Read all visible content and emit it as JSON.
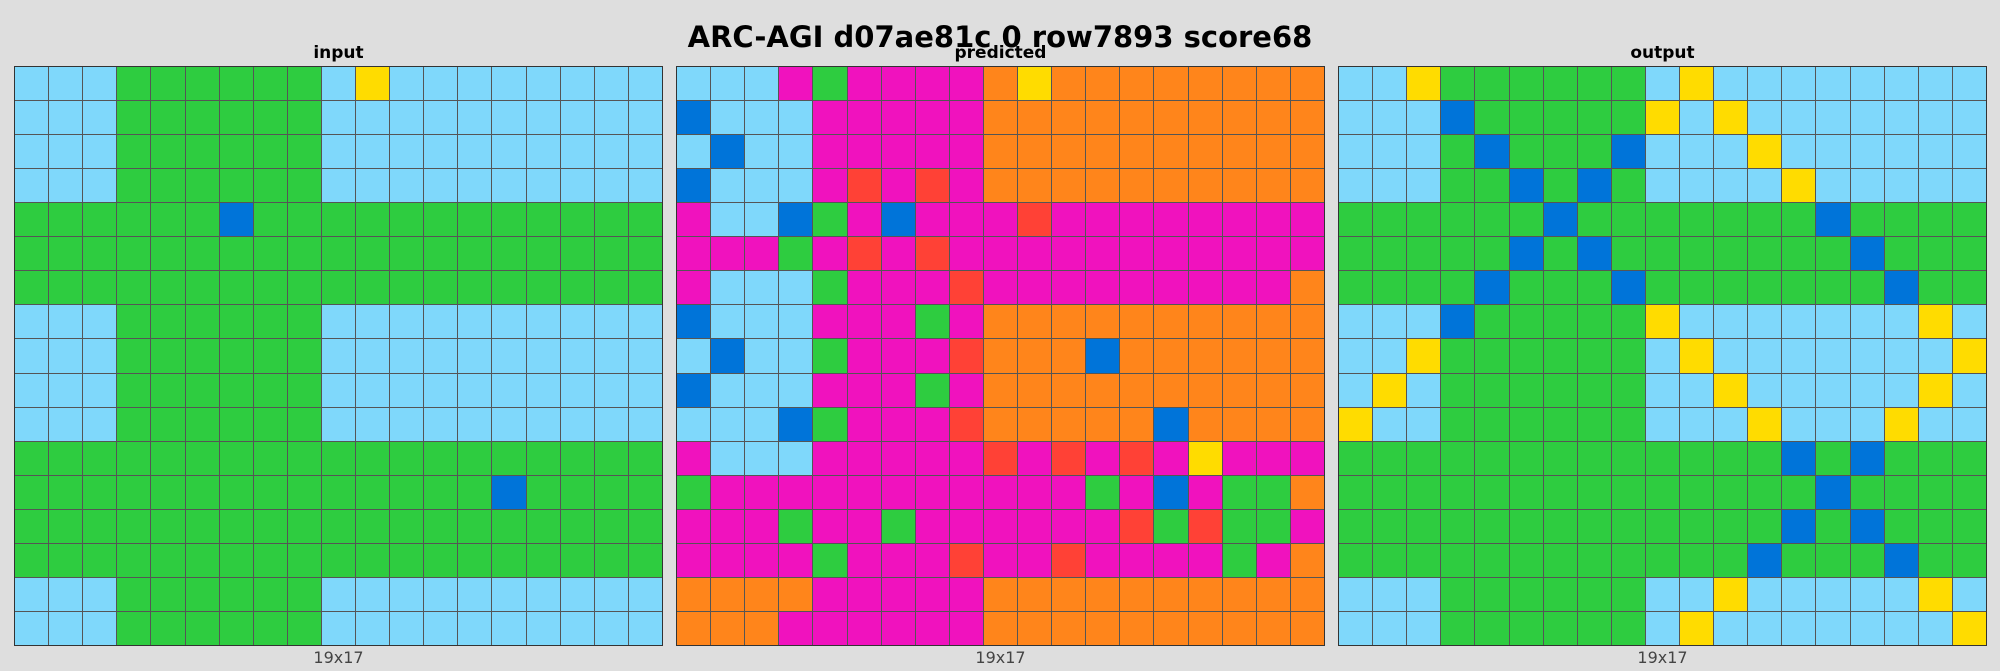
{
  "title": "ARC-AGI d07ae81c 0 row7893 score68",
  "palette": {
    "L": "#7fd8fb",
    "G": "#2ecc40",
    "B": "#0074d9",
    "Y": "#ffdc00",
    "M": "#f012be",
    "O": "#ff851b",
    "R": "#ff4136"
  },
  "panels": [
    {
      "label": "input",
      "dims": "19x17",
      "rows": [
        "LLLGGGGGGLYLLLLLLLL",
        "LLLGGGGGGLLLLLLLLLL",
        "LLLGGGGGGLLLLLLLLLL",
        "LLLGGGGGGLLLLLLLLLL",
        "GGGGGGBGGGGGGGGGGGG",
        "GGGGGGGGGGGGGGGGGGG",
        "GGGGGGGGGGGGGGGGGGG",
        "LLLGGGGGGLLLLLLLLLL",
        "LLLGGGGGGLLLLLLLLLL",
        "LLLGGGGGGLLLLLLLLLL",
        "LLLGGGGGGLLLLLLLLLL",
        "GGGGGGGGGGGGGGGGGGG",
        "GGGGGGGGGGGGGGBGGGG",
        "GGGGGGGGGGGGGGGGGGG",
        "GGGGGGGGGGGGGGGGGGG",
        "LLLGGGGGGLLLLLLLLLL",
        "LLLGGGGGGLLLLLLLLLL"
      ]
    },
    {
      "label": "predicted",
      "dims": "19x17",
      "rows": [
        "LLLMGMMMMOYOOOOOOOO",
        "BLLLMMMMMOOOOOOOOOO",
        "LBLLMMMMMOOOOOOOOOO",
        "BLLLMRMRMOOOOOOOOOO",
        "MLLBGMBMMMRMMMMMMMM",
        "MMMGMRMRMMMMMMMMMMM",
        "MLLLGMMMRMMMMMMMMMO",
        "BLLLMMMGMOOOOOOOOOO",
        "LBLLGMMMROOOBOOOOOO",
        "BLLLMMMGMOOOOOOOOOO",
        "LLLBGMMMROOOOOBOOOO",
        "MLLLMMMMMRMRMRMYMMM",
        "GMMMMMMMMMMMGMBMGGO",
        "MMMGMMGMMMMMMRGRGGM",
        "MMMMGMMMRMMRMMMMGMO",
        "OOOOMMMMMOOOOOOOOOO",
        "OOOMMMMMMOOOOOOOOOO"
      ]
    },
    {
      "label": "output",
      "dims": "19x17",
      "rows": [
        "LLYGGGGGGLYLLLLLLLL",
        "LLLBGGGGGYLYLLLLLLL",
        "LLLGBGGGBLLLYLLLLLL",
        "LLLGGBGBGLLLLYLLLLL",
        "GGGGGGBGGGGGGGBGGGG",
        "GGGGGBGBGGGGGGGBGGG",
        "GGGGBGGGBGGGGGGGBGG",
        "LLLBGGGGGYLLLLLLLYL",
        "LLYGGGGGGLYLLLLLLLY",
        "LYLGGGGGGLLYLLLLLYL",
        "YLLGGGGGGLLLYLLLYLL",
        "GGGGGGGGGGGGGBGBGGG",
        "GGGGGGGGGGGGGGBGGGG",
        "GGGGGGGGGGGGGBGBGGG",
        "GGGGGGGGGGGGBGGGBGG",
        "LLLGGGGGGLLYLLLLLYL",
        "LLLGGGGGGLYLLLLLLLY"
      ]
    }
  ]
}
